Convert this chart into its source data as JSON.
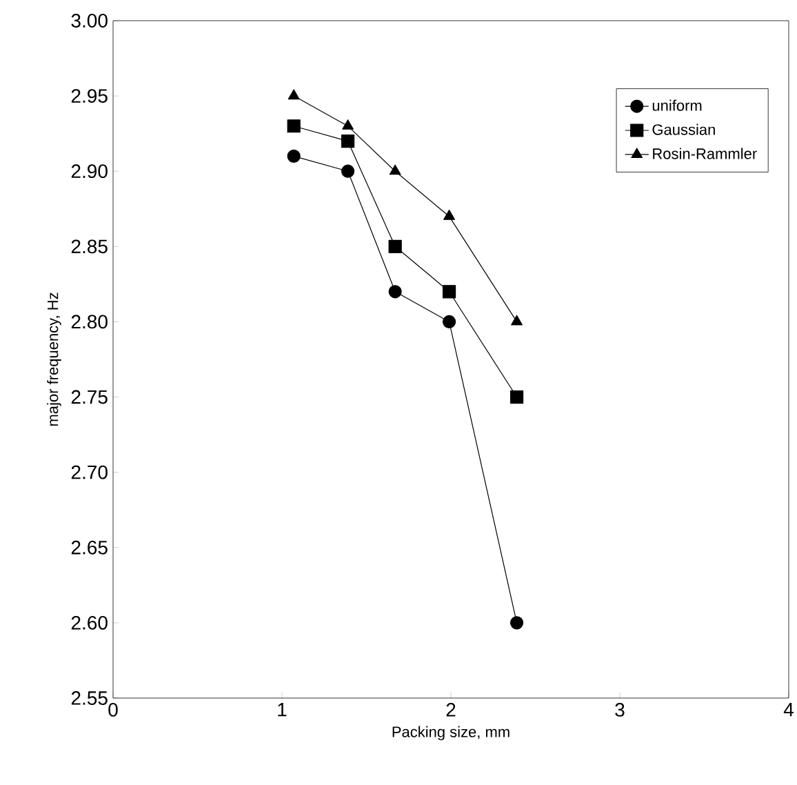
{
  "chart_data": {
    "type": "line",
    "xlabel": "Packing size, mm",
    "ylabel": "major frequency, Hz",
    "xlim": [
      0,
      4
    ],
    "xticks": [
      0,
      1,
      2,
      3,
      4
    ],
    "ylim": [
      2.55,
      3.0
    ],
    "yticks": [
      {
        "value": 2.55,
        "label": "2.55"
      },
      {
        "value": 2.6,
        "label": "2.60"
      },
      {
        "value": 2.65,
        "label": "2.65"
      },
      {
        "value": 2.7,
        "label": "2.70"
      },
      {
        "value": 2.75,
        "label": "2.75"
      },
      {
        "value": 2.8,
        "label": "2.80"
      },
      {
        "value": 2.85,
        "label": "2.85"
      },
      {
        "value": 2.9,
        "label": "2.90"
      },
      {
        "value": 2.95,
        "label": "2.95"
      },
      {
        "value": 3.0,
        "label": "3.00"
      }
    ],
    "x": [
      1.07,
      1.39,
      1.67,
      1.99,
      2.39
    ],
    "legend": "top right",
    "grid": false,
    "series": [
      {
        "name": "uniform",
        "color": "#000000",
        "marker": "circle",
        "values": [
          2.91,
          2.9,
          2.82,
          2.8,
          2.6
        ]
      },
      {
        "name": "Gaussian",
        "color": "#000000",
        "marker": "square",
        "values": [
          2.93,
          2.92,
          2.85,
          2.82,
          2.75
        ]
      },
      {
        "name": "Rosin-Rammler",
        "color": "#000000",
        "marker": "triangle",
        "values": [
          2.95,
          2.93,
          2.9,
          2.87,
          2.8
        ]
      }
    ]
  }
}
